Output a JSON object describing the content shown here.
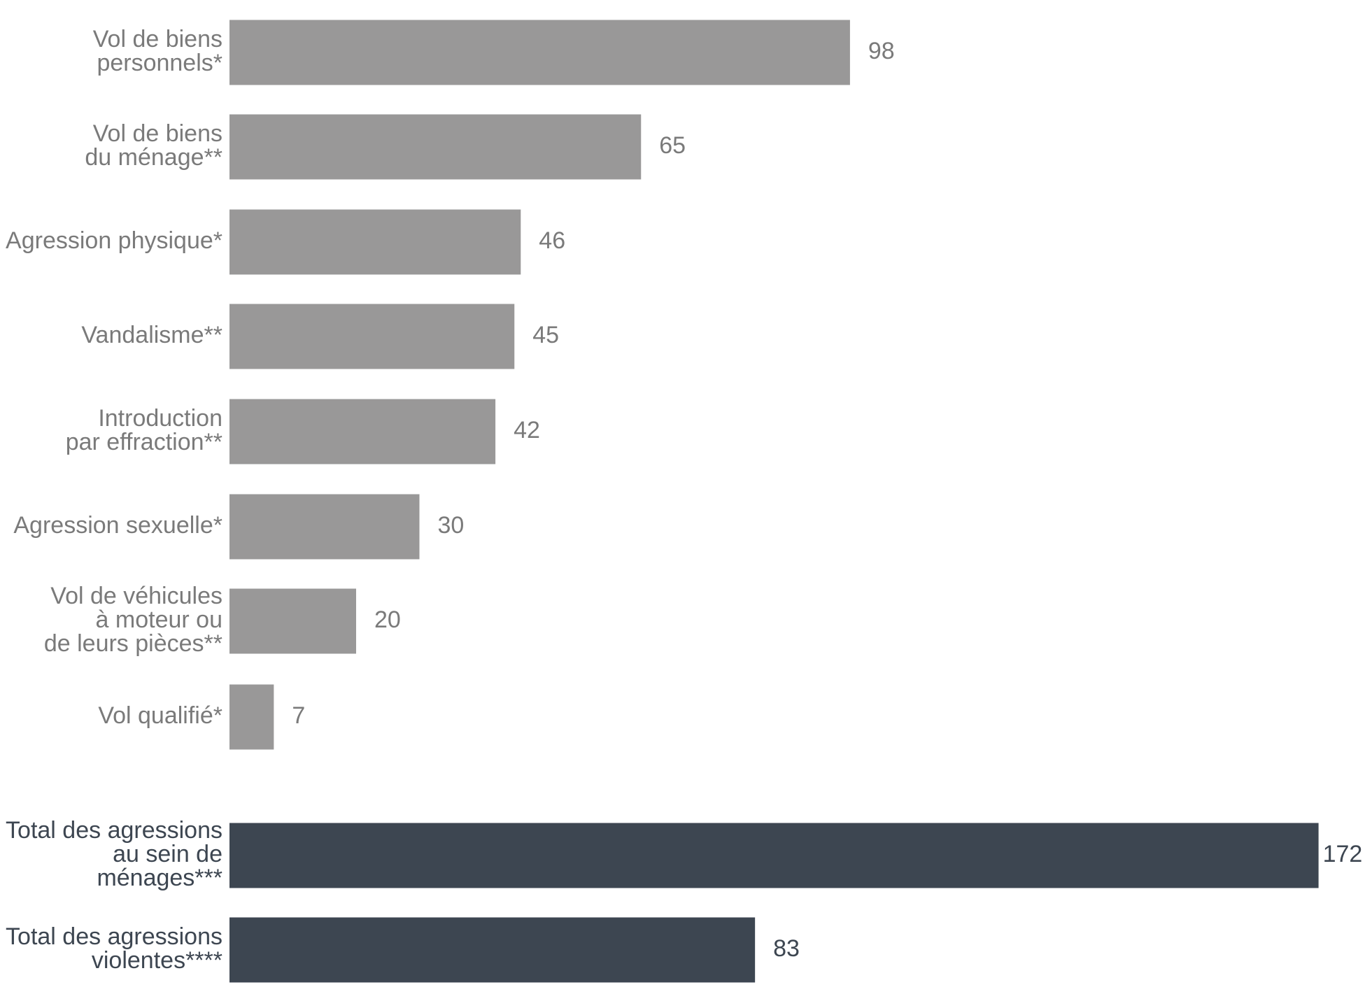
{
  "chart_data": {
    "type": "bar",
    "orientation": "horizontal",
    "categories": [
      [
        "Vol de biens",
        "personnels*"
      ],
      [
        "Vol de biens",
        "du ménage**"
      ],
      [
        "Agression physique*"
      ],
      [
        "Vandalisme**"
      ],
      [
        "Introduction",
        "par effraction**"
      ],
      [
        "Agression sexuelle*"
      ],
      [
        "Vol de véhicules",
        "à moteur ou",
        "de leurs pièces**"
      ],
      [
        "Vol qualifié*"
      ],
      [
        "Total des agressions",
        "au sein de",
        "ménages***"
      ],
      [
        "Total des agressions",
        "violentes****"
      ]
    ],
    "values": [
      98,
      65,
      46,
      45,
      42,
      30,
      20,
      7,
      172,
      83
    ],
    "colors": [
      "#999898",
      "#999898",
      "#999898",
      "#999898",
      "#999898",
      "#999898",
      "#999898",
      "#999898",
      "#3d4651",
      "#3d4651"
    ],
    "label_colors": [
      "#7a7a7a",
      "#7a7a7a",
      "#7a7a7a",
      "#7a7a7a",
      "#7a7a7a",
      "#7a7a7a",
      "#7a7a7a",
      "#7a7a7a",
      "#3d4651",
      "#3d4651"
    ]
  }
}
